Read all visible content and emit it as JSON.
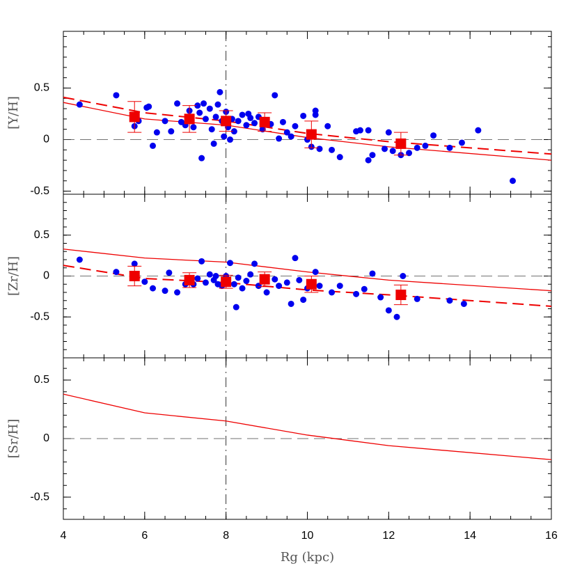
{
  "chart_data": [
    {
      "type": "scatter",
      "ylabel": "[Y/H]",
      "xlim": [
        4,
        16
      ],
      "ylim": [
        -0.53,
        1.05
      ],
      "yticks": [
        -0.5,
        0,
        0.5
      ],
      "refline_x": 8,
      "refline_y": 0,
      "stars": {
        "color": "#0000ee",
        "x": [
          4.4,
          5.3,
          5.75,
          5.85,
          6.05,
          6.1,
          6.2,
          6.3,
          6.5,
          6.65,
          6.8,
          6.9,
          7.0,
          7.1,
          7.2,
          7.3,
          7.35,
          7.4,
          7.45,
          7.5,
          7.6,
          7.65,
          7.7,
          7.75,
          7.8,
          7.85,
          7.9,
          7.95,
          8.0,
          8.05,
          8.1,
          8.15,
          8.2,
          8.3,
          8.4,
          8.5,
          8.55,
          8.6,
          8.7,
          8.8,
          8.9,
          9.1,
          9.2,
          9.3,
          9.4,
          9.5,
          9.6,
          9.7,
          9.9,
          10.0,
          10.1,
          10.2,
          10.2,
          10.3,
          10.5,
          10.6,
          10.8,
          11.2,
          11.3,
          11.5,
          11.5,
          11.6,
          11.9,
          12.0,
          12.1,
          12.3,
          12.5,
          12.7,
          12.9,
          13.1,
          13.5,
          13.8,
          14.2,
          15.05
        ],
        "y": [
          0.34,
          0.43,
          0.13,
          0.18,
          0.31,
          0.32,
          -0.06,
          0.07,
          0.18,
          0.08,
          0.35,
          0.17,
          0.14,
          0.28,
          0.12,
          0.33,
          0.26,
          -0.18,
          0.35,
          0.2,
          0.3,
          0.1,
          -0.04,
          0.22,
          0.34,
          0.46,
          0.18,
          0.03,
          0.27,
          0.12,
          0.0,
          0.2,
          0.08,
          0.18,
          0.24,
          0.14,
          0.25,
          0.21,
          0.16,
          0.22,
          0.1,
          0.15,
          0.43,
          0.01,
          0.17,
          0.07,
          0.03,
          0.13,
          0.23,
          0.0,
          -0.07,
          0.28,
          0.24,
          -0.09,
          0.13,
          -0.1,
          -0.17,
          0.08,
          0.09,
          0.09,
          -0.2,
          -0.15,
          -0.09,
          0.07,
          -0.11,
          -0.15,
          -0.13,
          -0.08,
          -0.06,
          0.04,
          -0.08,
          -0.03,
          0.09,
          -0.4
        ]
      },
      "means": {
        "color": "#ee0000",
        "x": [
          5.75,
          7.1,
          8.0,
          8.95,
          10.1,
          12.3
        ],
        "y": [
          0.22,
          0.2,
          0.18,
          0.17,
          0.05,
          -0.04
        ],
        "err": [
          0.15,
          0.13,
          0.1,
          0.09,
          0.13,
          0.11
        ]
      },
      "lines": [
        {
          "color": "#ee0000",
          "dashed": false,
          "x": [
            4,
            6,
            8,
            10,
            12,
            16
          ],
          "y": [
            0.36,
            0.2,
            0.14,
            0.02,
            -0.07,
            -0.2
          ]
        },
        {
          "color": "#ee0000",
          "dashed": true,
          "x": [
            4,
            6,
            8,
            10,
            12,
            16
          ],
          "y": [
            0.41,
            0.26,
            0.18,
            0.06,
            -0.02,
            -0.14
          ]
        }
      ]
    },
    {
      "type": "scatter",
      "ylabel": "[Zr/H]",
      "xlim": [
        4,
        16
      ],
      "ylim": [
        -1,
        1
      ],
      "yticks": [
        -0.5,
        0,
        0.5
      ],
      "refline_x": 8,
      "refline_y": 0,
      "stars": {
        "color": "#0000ee",
        "x": [
          4.4,
          5.3,
          5.75,
          6.0,
          6.2,
          6.5,
          6.6,
          6.8,
          7.0,
          7.2,
          7.3,
          7.4,
          7.5,
          7.6,
          7.7,
          7.75,
          7.8,
          7.9,
          8.0,
          8.05,
          8.1,
          8.2,
          8.25,
          8.3,
          8.4,
          8.5,
          8.6,
          8.7,
          8.8,
          9.0,
          9.2,
          9.3,
          9.5,
          9.6,
          9.7,
          9.8,
          9.9,
          10.0,
          10.2,
          10.3,
          10.6,
          10.8,
          11.2,
          11.4,
          11.6,
          11.8,
          12.0,
          12.2,
          12.35,
          12.7,
          13.5,
          13.85
        ],
        "y": [
          0.2,
          0.05,
          0.15,
          -0.07,
          -0.15,
          -0.18,
          0.04,
          -0.2,
          -0.1,
          -0.1,
          -0.03,
          0.18,
          -0.08,
          0.02,
          -0.05,
          0.0,
          -0.1,
          -0.12,
          0.0,
          -0.05,
          0.16,
          -0.1,
          -0.38,
          -0.02,
          -0.15,
          -0.06,
          0.02,
          0.15,
          -0.12,
          -0.2,
          -0.04,
          -0.12,
          -0.08,
          -0.34,
          0.22,
          -0.05,
          -0.29,
          -0.15,
          0.05,
          -0.12,
          -0.2,
          -0.12,
          -0.22,
          -0.16,
          0.03,
          -0.26,
          -0.42,
          -0.5,
          0.0,
          -0.28,
          -0.3,
          -0.34
        ]
      },
      "means": {
        "color": "#ee0000",
        "x": [
          5.75,
          7.1,
          8.0,
          8.95,
          10.1,
          12.3
        ],
        "y": [
          0.0,
          -0.05,
          -0.07,
          -0.04,
          -0.1,
          -0.23
        ],
        "err": [
          0.12,
          0.09,
          0.08,
          0.09,
          0.1,
          0.12
        ]
      },
      "lines": [
        {
          "color": "#ee0000",
          "dashed": false,
          "x": [
            4,
            6,
            8,
            10,
            12,
            16
          ],
          "y": [
            0.33,
            0.22,
            0.17,
            0.05,
            -0.05,
            -0.18
          ]
        },
        {
          "color": "#ee0000",
          "dashed": true,
          "x": [
            4,
            6,
            8,
            10,
            12,
            16
          ],
          "y": [
            0.13,
            -0.03,
            -0.08,
            -0.17,
            -0.23,
            -0.37
          ]
        }
      ]
    },
    {
      "type": "scatter",
      "ylabel": "[Sr/H]",
      "xlabel": "Rg (kpc)",
      "xlim": [
        4,
        16
      ],
      "xticks": [
        4,
        6,
        8,
        10,
        12,
        14,
        16
      ],
      "ylim": [
        -0.69,
        0.69
      ],
      "yticks": [
        -0.5,
        0,
        0.5
      ],
      "refline_x": 8,
      "refline_y": 0,
      "lines": [
        {
          "color": "#ee0000",
          "dashed": false,
          "x": [
            4,
            6,
            8,
            10,
            12,
            16
          ],
          "y": [
            0.38,
            0.22,
            0.15,
            0.03,
            -0.06,
            -0.18
          ]
        }
      ]
    }
  ]
}
